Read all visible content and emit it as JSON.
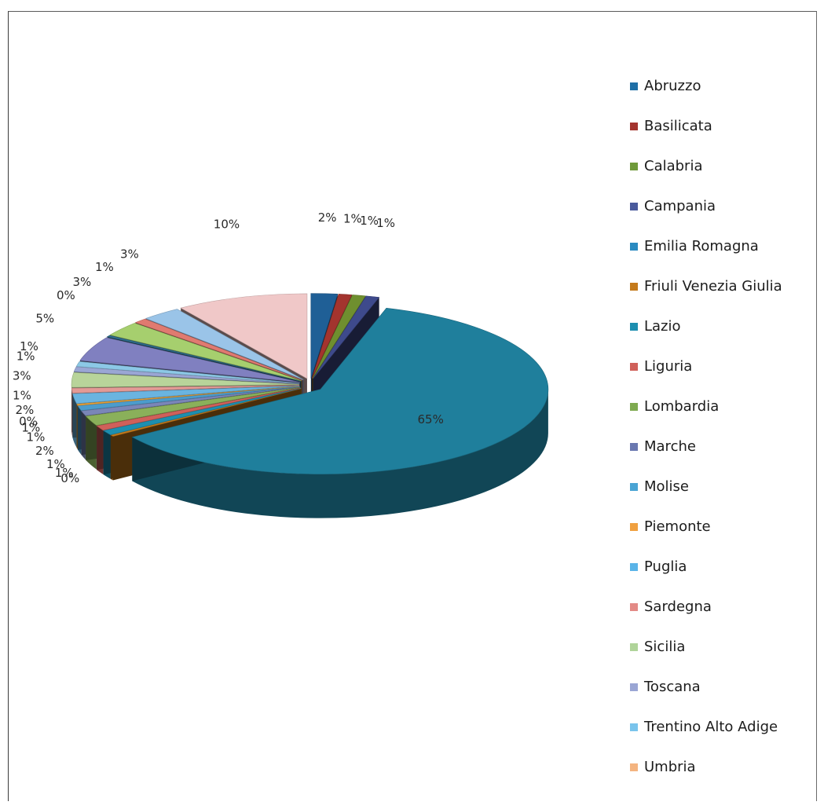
{
  "chart_data": {
    "type": "pie",
    "style": "3d exploded pie",
    "categories": [
      "Abruzzo",
      "Basilicata",
      "Calabria",
      "Campania",
      "Emilia Romagna",
      "Friuli  Venezia Giulia",
      "Lazio",
      "Liguria",
      "Lombardia",
      "Marche",
      "Molise",
      "Piemonte",
      "Puglia",
      "Sardegna",
      "Sicilia",
      "Toscana",
      "Trentino Alto Adige",
      "Umbria",
      "",
      "",
      "",
      "",
      ""
    ],
    "values": [
      2,
      1,
      1,
      1,
      65,
      0,
      1,
      1,
      2,
      1,
      1,
      0,
      2,
      1,
      3,
      1,
      1,
      5,
      0,
      3,
      1,
      3,
      10
    ],
    "labels": [
      "2%",
      "1%",
      "1%",
      "1%",
      "65%",
      "0%",
      "1%",
      "1%",
      "2%",
      "1%",
      "1%",
      "0%",
      "2%",
      "1%",
      "3%",
      "1%",
      "1%",
      "5%",
      "0%",
      "3%",
      "1%",
      "3%",
      "10%"
    ],
    "colors": [
      "#1f5f96",
      "#a3342e",
      "#6f8f2f",
      "#3e4a8c",
      "#1f7f9c",
      "#c47a1b",
      "#1d8fb0",
      "#d0605a",
      "#8ab05a",
      "#7a86b8",
      "#4c9ccc",
      "#e8a23a",
      "#6ab4e0",
      "#e39a96",
      "#b8d49a",
      "#9aa6d4",
      "#8cc8e6",
      "#8080c0",
      "#2f6f8f",
      "#a6cf6e",
      "#e07a70",
      "#9ac4e8",
      "#f0c8c8"
    ],
    "legend_position": "right",
    "legend": [
      {
        "label": "Abruzzo",
        "color": "#1f6fa6"
      },
      {
        "label": "Basilicata",
        "color": "#a3342e"
      },
      {
        "label": "Calabria",
        "color": "#6f9a3a"
      },
      {
        "label": "Campania",
        "color": "#4a5a9c"
      },
      {
        "label": "Emilia Romagna",
        "color": "#2a8ac0"
      },
      {
        "label": "Friuli  Venezia Giulia",
        "color": "#c47a1b"
      },
      {
        "label": "Lazio",
        "color": "#1d8fb0"
      },
      {
        "label": "Liguria",
        "color": "#d0605a"
      },
      {
        "label": "Lombardia",
        "color": "#7eaa50"
      },
      {
        "label": "Marche",
        "color": "#6a78b0"
      },
      {
        "label": "Molise",
        "color": "#4aa4d4"
      },
      {
        "label": "Piemonte",
        "color": "#f0a040"
      },
      {
        "label": "Puglia",
        "color": "#5ab4e8"
      },
      {
        "label": "Sardegna",
        "color": "#e38a86"
      },
      {
        "label": "Sicilia",
        "color": "#b0d49a"
      },
      {
        "label": "Toscana",
        "color": "#9aa6d4"
      },
      {
        "label": "Trentino Alto Adige",
        "color": "#7ac4ec"
      },
      {
        "label": "Umbria",
        "color": "#f4b480"
      }
    ]
  }
}
